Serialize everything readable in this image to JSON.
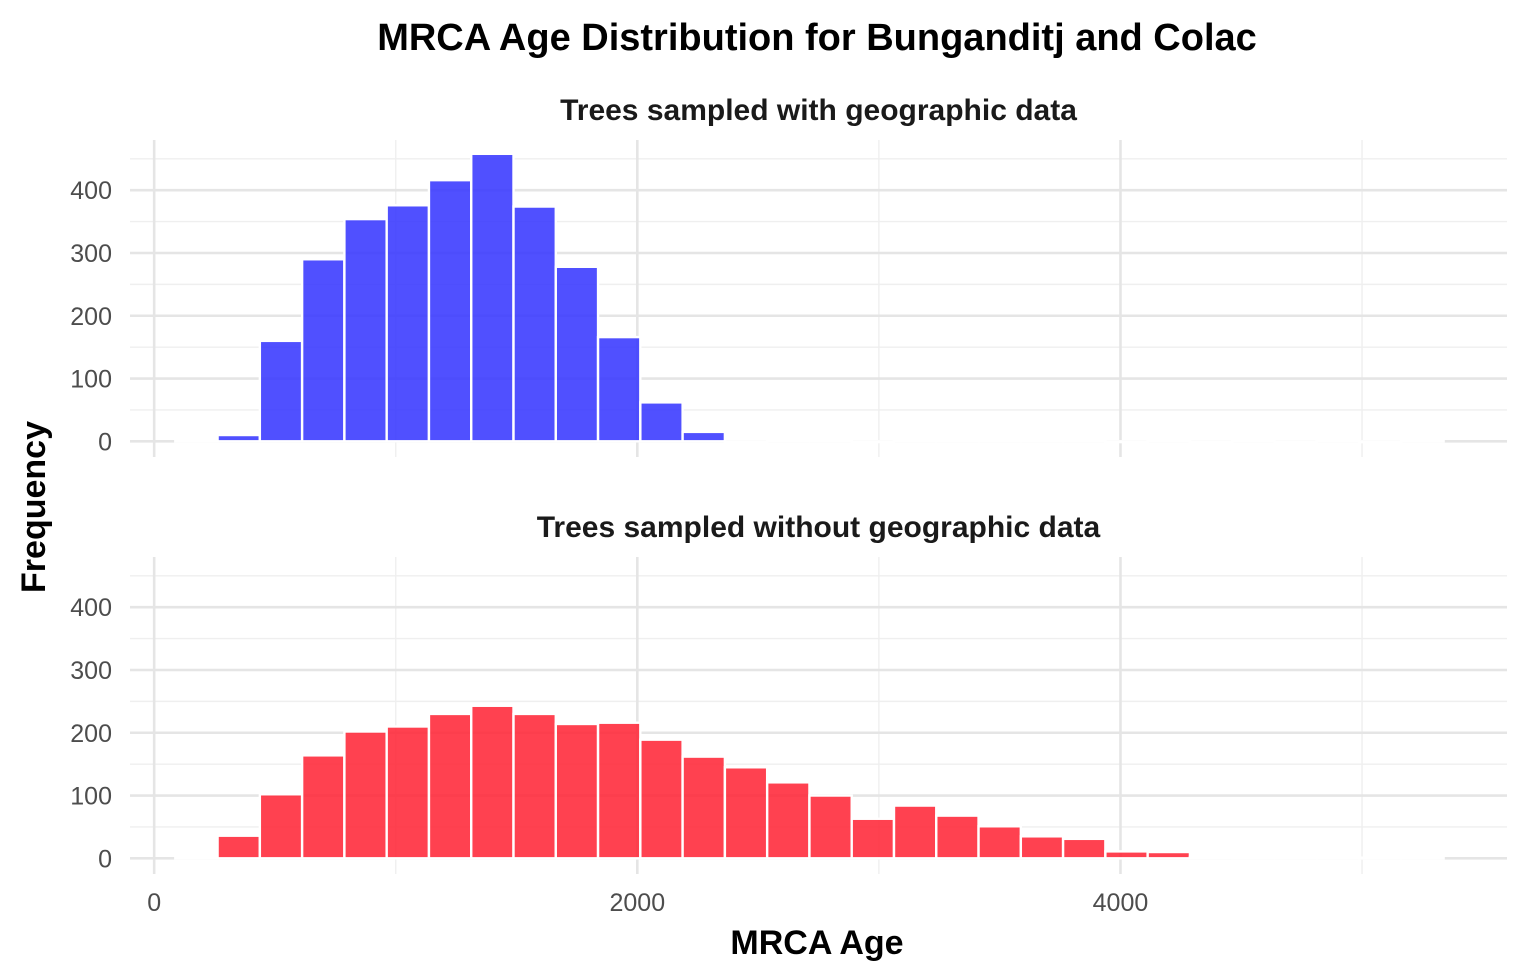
{
  "chart_data": {
    "type": "bar",
    "title": "MRCA Age Distribution for Bunganditj and Colac",
    "xlabel": "MRCA Age",
    "ylabel": "Frequency",
    "bin_width": 175,
    "x_range": [
      -100,
      5600
    ],
    "ylim": [
      -25,
      480
    ],
    "x_ticks": [
      0,
      2000,
      4000
    ],
    "y_ticks": [
      0,
      100,
      200,
      300,
      400
    ],
    "grid": true,
    "panels": [
      {
        "label": "Trees sampled with geographic data",
        "color": "#3333FF",
        "bins": [
          {
            "x": 175,
            "y": 1
          },
          {
            "x": 350,
            "y": 10
          },
          {
            "x": 525,
            "y": 160
          },
          {
            "x": 700,
            "y": 290
          },
          {
            "x": 875,
            "y": 354
          },
          {
            "x": 1050,
            "y": 376
          },
          {
            "x": 1225,
            "y": 416
          },
          {
            "x": 1400,
            "y": 458
          },
          {
            "x": 1575,
            "y": 374
          },
          {
            "x": 1750,
            "y": 278
          },
          {
            "x": 1925,
            "y": 166
          },
          {
            "x": 2100,
            "y": 62
          },
          {
            "x": 2275,
            "y": 15
          },
          {
            "x": 2450,
            "y": 0
          },
          {
            "x": 2625,
            "y": 1
          },
          {
            "x": 2800,
            "y": 1
          },
          {
            "x": 2975,
            "y": 0
          },
          {
            "x": 3150,
            "y": 1
          },
          {
            "x": 3325,
            "y": 1
          },
          {
            "x": 3500,
            "y": 1
          },
          {
            "x": 3675,
            "y": 1
          },
          {
            "x": 3850,
            "y": 1
          },
          {
            "x": 4025,
            "y": 0
          },
          {
            "x": 4200,
            "y": 1
          },
          {
            "x": 4375,
            "y": 0
          },
          {
            "x": 4550,
            "y": 1
          },
          {
            "x": 4725,
            "y": 0
          },
          {
            "x": 4900,
            "y": 1
          },
          {
            "x": 5075,
            "y": 0
          },
          {
            "x": 5250,
            "y": 1
          }
        ]
      },
      {
        "label": "Trees sampled without geographic data",
        "color": "#FF2233",
        "bins": [
          {
            "x": 175,
            "y": 3
          },
          {
            "x": 350,
            "y": 36
          },
          {
            "x": 525,
            "y": 102
          },
          {
            "x": 700,
            "y": 164
          },
          {
            "x": 875,
            "y": 202
          },
          {
            "x": 1050,
            "y": 210
          },
          {
            "x": 1225,
            "y": 230
          },
          {
            "x": 1400,
            "y": 243
          },
          {
            "x": 1575,
            "y": 230
          },
          {
            "x": 1750,
            "y": 214
          },
          {
            "x": 1925,
            "y": 216
          },
          {
            "x": 2100,
            "y": 189
          },
          {
            "x": 2275,
            "y": 162
          },
          {
            "x": 2450,
            "y": 145
          },
          {
            "x": 2625,
            "y": 121
          },
          {
            "x": 2800,
            "y": 100
          },
          {
            "x": 2975,
            "y": 63
          },
          {
            "x": 3150,
            "y": 84
          },
          {
            "x": 3325,
            "y": 68
          },
          {
            "x": 3500,
            "y": 51
          },
          {
            "x": 3675,
            "y": 35
          },
          {
            "x": 3850,
            "y": 31
          },
          {
            "x": 4025,
            "y": 11
          },
          {
            "x": 4200,
            "y": 10
          },
          {
            "x": 4375,
            "y": 2
          },
          {
            "x": 4550,
            "y": 1
          },
          {
            "x": 4725,
            "y": 1
          },
          {
            "x": 4900,
            "y": 1
          },
          {
            "x": 5075,
            "y": 1
          },
          {
            "x": 5250,
            "y": 1
          }
        ]
      }
    ]
  }
}
